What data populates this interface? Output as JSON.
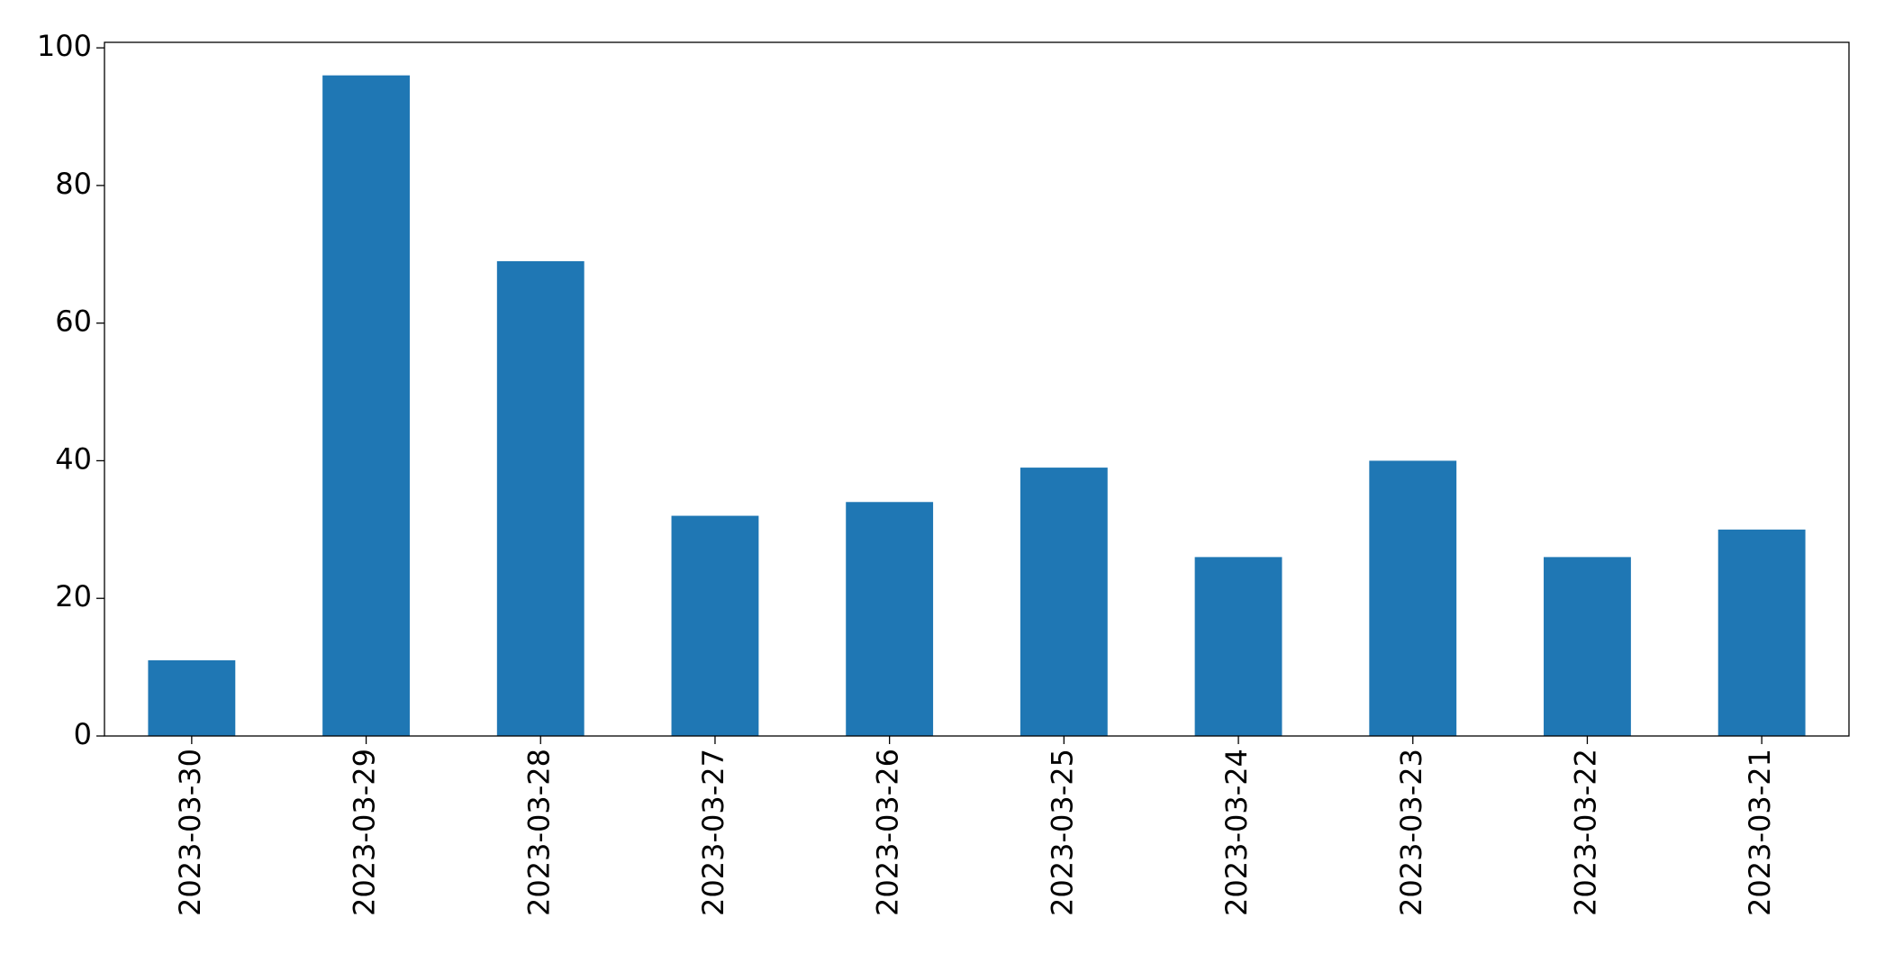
{
  "chart_data": {
    "type": "bar",
    "categories": [
      "2023-03-30",
      "2023-03-29",
      "2023-03-28",
      "2023-03-27",
      "2023-03-26",
      "2023-03-25",
      "2023-03-24",
      "2023-03-23",
      "2023-03-22",
      "2023-03-21"
    ],
    "values": [
      11,
      96,
      69,
      32,
      34,
      39,
      26,
      40,
      26,
      30
    ],
    "color": "#1f77b4",
    "ylim": [
      0,
      100.8
    ],
    "yticks": [
      0,
      20,
      40,
      60,
      80,
      100
    ],
    "grid": false
  }
}
